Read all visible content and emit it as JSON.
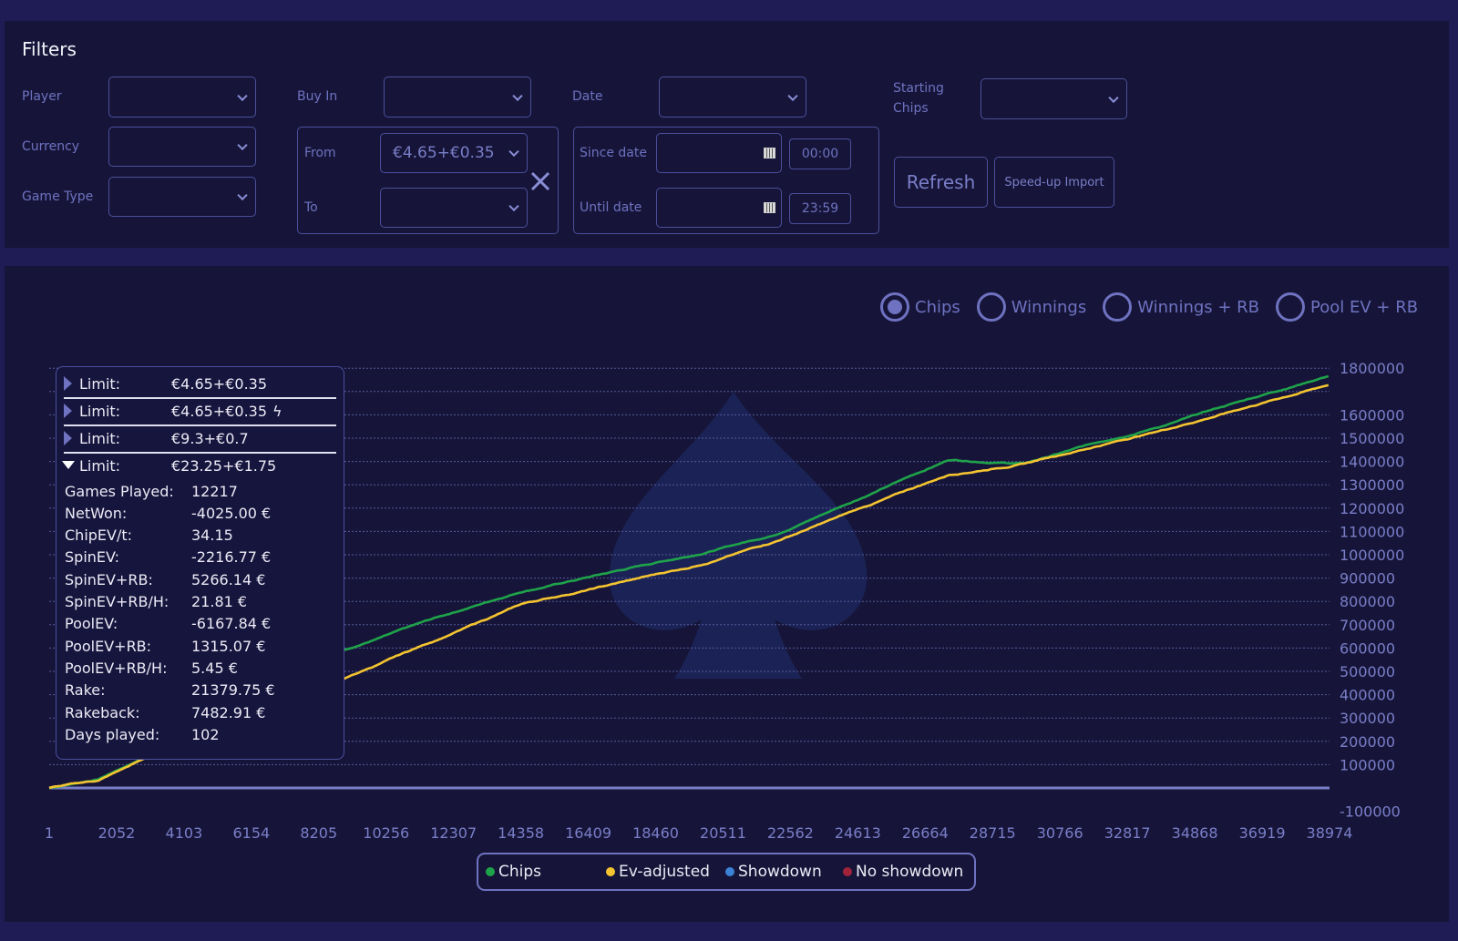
{
  "filters": {
    "title": "Filters",
    "player_label": "Player",
    "currency_label": "Currency",
    "game_type_label": "Game Type",
    "buy_in_label": "Buy In",
    "from_label": "From",
    "from_value": "€4.65+€0.35",
    "to_label": "To",
    "date_label": "Date",
    "since_label": "Since date",
    "since_time": "00:00",
    "until_label": "Until date",
    "until_time": "23:59",
    "starting_chips_label_1": "Starting",
    "starting_chips_label_2": "Chips",
    "refresh": "Refresh",
    "speedup": "Speed-up Import"
  },
  "mode": {
    "options": [
      "Chips",
      "Winnings",
      "Winnings + RB",
      "Pool EV + RB"
    ],
    "selected": "Chips"
  },
  "tooltip": {
    "limits": [
      {
        "label": "Limit:",
        "value": "€4.65+€0.35",
        "expanded": false,
        "icon": "lightning-icon-none"
      },
      {
        "label": "Limit:",
        "value": "€4.65+€0.35",
        "expanded": false,
        "icon": "lightning-icon"
      },
      {
        "label": "Limit:",
        "value": "€9.3+€0.7",
        "expanded": false
      },
      {
        "label": "Limit:",
        "value": "€23.25+€1.75",
        "expanded": true
      }
    ],
    "stats": [
      {
        "k": "Games Played:",
        "v": "12217"
      },
      {
        "k": "NetWon:",
        "v": "-4025.00 €"
      },
      {
        "k": "ChipEV/t:",
        "v": "34.15"
      },
      {
        "k": "SpinEV:",
        "v": "-2216.77 €"
      },
      {
        "k": "SpinEV+RB:",
        "v": "5266.14 €"
      },
      {
        "k": "SpinEV+RB/H:",
        "v": "21.81 €"
      },
      {
        "k": "PoolEV:",
        "v": "-6167.84 €"
      },
      {
        "k": "PoolEV+RB:",
        "v": "1315.07 €"
      },
      {
        "k": "PoolEV+RB/H:",
        "v": "5.45 €"
      },
      {
        "k": "Rake:",
        "v": "21379.75 €"
      },
      {
        "k": "Rakeback:",
        "v": "7482.91 €"
      },
      {
        "k": "Days played:",
        "v": "102"
      }
    ]
  },
  "chart_data": {
    "type": "line",
    "x_ticks": [
      "1",
      "2052",
      "4103",
      "6154",
      "8205",
      "10256",
      "12307",
      "14358",
      "16409",
      "18460",
      "20511",
      "22562",
      "24613",
      "26664",
      "28715",
      "30766",
      "32817",
      "34868",
      "36919",
      "38974"
    ],
    "y_ticks": [
      "1800000",
      "1600000",
      "1500000",
      "1400000",
      "1300000",
      "1200000",
      "1100000",
      "1000000",
      "900000",
      "800000",
      "700000",
      "600000",
      "500000",
      "400000",
      "300000",
      "200000",
      "100000",
      "-100000"
    ],
    "y_gridlines": [
      1800000,
      1700000,
      1600000,
      1500000,
      1400000,
      1300000,
      1200000,
      1100000,
      1000000,
      900000,
      800000,
      700000,
      600000,
      500000,
      400000,
      300000,
      200000,
      100000
    ],
    "ylim": [
      -100000,
      1800000
    ],
    "xlim": [
      1,
      38974
    ],
    "x": [
      1,
      1500,
      2700,
      5000,
      9000,
      14400,
      19500,
      22000,
      27400,
      29700,
      34000,
      38974
    ],
    "series": [
      {
        "name": "Chips",
        "color": "#1fa34a",
        "values": [
          0,
          40000,
          120000,
          300000,
          600000,
          846000,
          997000,
          1085000,
          1410000,
          1395000,
          1561000,
          1772000
        ]
      },
      {
        "name": "Ev-adjusted",
        "color": "#f4c430",
        "values": [
          0,
          30000,
          110000,
          260000,
          470000,
          787000,
          946000,
          1053000,
          1343000,
          1395000,
          1541000,
          1732000
        ]
      }
    ],
    "legend": [
      {
        "name": "Chips",
        "color": "#1fa34a"
      },
      {
        "name": "Ev-adjusted",
        "color": "#f4c430"
      },
      {
        "name": "Showdown",
        "color": "#3b82d6"
      },
      {
        "name": "No showdown",
        "color": "#a0233a"
      }
    ]
  }
}
